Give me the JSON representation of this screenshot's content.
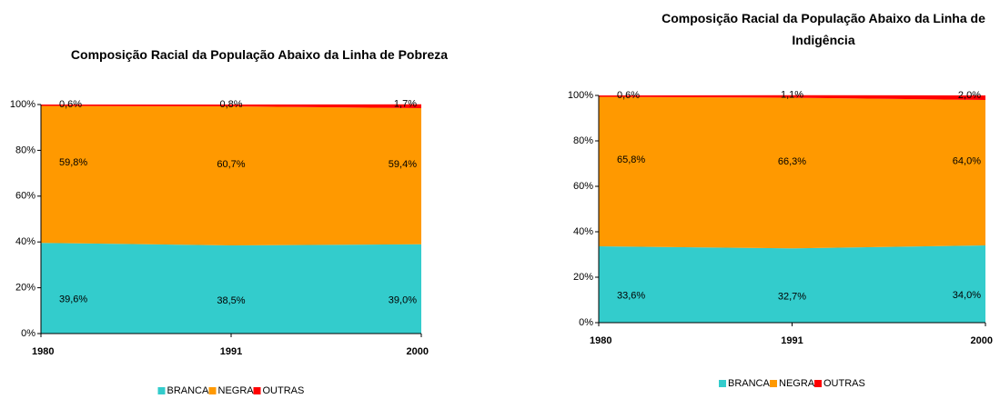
{
  "chart_data": [
    {
      "type": "stacked_area",
      "title": "Composição Racial da População Abaixo da Linha de Pobreza",
      "categories": [
        "1980",
        "1991",
        "2000"
      ],
      "series": [
        {
          "name": "BRANCA",
          "color": "#33CCCC",
          "values": [
            39.6,
            38.5,
            39.0
          ],
          "value_labels": [
            "39,6%",
            "38,5%",
            "39,0%"
          ]
        },
        {
          "name": "NEGRA",
          "color": "#FF9900",
          "values": [
            59.8,
            60.7,
            59.4
          ],
          "value_labels": [
            "59,8%",
            "60,7%",
            "59,4%"
          ]
        },
        {
          "name": "OUTRAS",
          "color": "#FF0000",
          "values": [
            0.6,
            0.8,
            1.7
          ],
          "value_labels": [
            "0,6%",
            "0,8%",
            "1,7%"
          ]
        }
      ],
      "ylim": [
        0,
        100
      ],
      "yticks": [
        {
          "value": 0,
          "label": "0%"
        },
        {
          "value": 20,
          "label": "20%"
        },
        {
          "value": 40,
          "label": "40%"
        },
        {
          "value": 60,
          "label": "60%"
        },
        {
          "value": 80,
          "label": "80%"
        },
        {
          "value": 100,
          "label": "100%"
        }
      ],
      "legend": "bottom"
    },
    {
      "type": "stacked_area",
      "title": "Composição Racial da População Abaixo da Linha de Indigência",
      "categories": [
        "1980",
        "1991",
        "2000"
      ],
      "series": [
        {
          "name": "BRANCA",
          "color": "#33CCCC",
          "values": [
            33.6,
            32.7,
            34.0
          ],
          "value_labels": [
            "33,6%",
            "32,7%",
            "34,0%"
          ]
        },
        {
          "name": "NEGRA",
          "color": "#FF9900",
          "values": [
            65.8,
            66.3,
            64.0
          ],
          "value_labels": [
            "65,8%",
            "66,3%",
            "64,0%"
          ]
        },
        {
          "name": "OUTRAS",
          "color": "#FF0000",
          "values": [
            0.6,
            1.1,
            2.0
          ],
          "value_labels": [
            "0,6%",
            "1,1%",
            "2,0%"
          ]
        }
      ],
      "ylim": [
        0,
        100
      ],
      "yticks": [
        {
          "value": 0,
          "label": "0%"
        },
        {
          "value": 20,
          "label": "20%"
        },
        {
          "value": 40,
          "label": "40%"
        },
        {
          "value": 60,
          "label": "60%"
        },
        {
          "value": 80,
          "label": "80%"
        },
        {
          "value": 100,
          "label": "100%"
        }
      ],
      "legend": "bottom"
    }
  ]
}
